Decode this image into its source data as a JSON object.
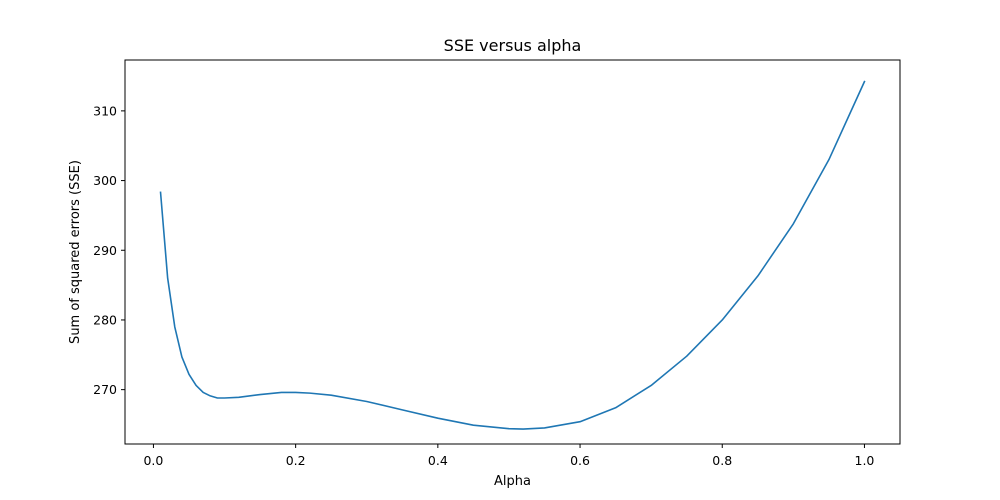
{
  "chart_data": {
    "type": "line",
    "title": "SSE versus alpha",
    "xlabel": "Alpha",
    "ylabel": "Sum of squared errors (SSE)",
    "xlim": [
      -0.04,
      1.05
    ],
    "ylim": [
      262.2,
      317.3
    ],
    "xticks": [
      0.0,
      0.2,
      0.4,
      0.6,
      0.8,
      1.0
    ],
    "xtick_labels": [
      "0.0",
      "0.2",
      "0.4",
      "0.6",
      "0.8",
      "1.0"
    ],
    "yticks": [
      270,
      280,
      290,
      300,
      310
    ],
    "ytick_labels": [
      "270",
      "280",
      "290",
      "300",
      "310"
    ],
    "grid": false,
    "series": [
      {
        "color": "#1f77b4",
        "x": [
          0.01,
          0.02,
          0.03,
          0.04,
          0.05,
          0.06,
          0.07,
          0.08,
          0.09,
          0.1,
          0.12,
          0.15,
          0.18,
          0.2,
          0.22,
          0.25,
          0.3,
          0.35,
          0.4,
          0.45,
          0.5,
          0.52,
          0.55,
          0.6,
          0.65,
          0.7,
          0.75,
          0.8,
          0.85,
          0.9,
          0.95,
          1.0
        ],
        "y": [
          298.3,
          286.0,
          279.0,
          274.7,
          272.2,
          270.6,
          269.6,
          269.1,
          268.8,
          268.8,
          268.9,
          269.3,
          269.6,
          269.6,
          269.5,
          269.2,
          268.3,
          267.1,
          265.9,
          264.9,
          264.4,
          264.35,
          264.5,
          265.4,
          267.4,
          270.6,
          274.8,
          280.0,
          286.3,
          293.8,
          303.0,
          314.2
        ]
      }
    ]
  }
}
